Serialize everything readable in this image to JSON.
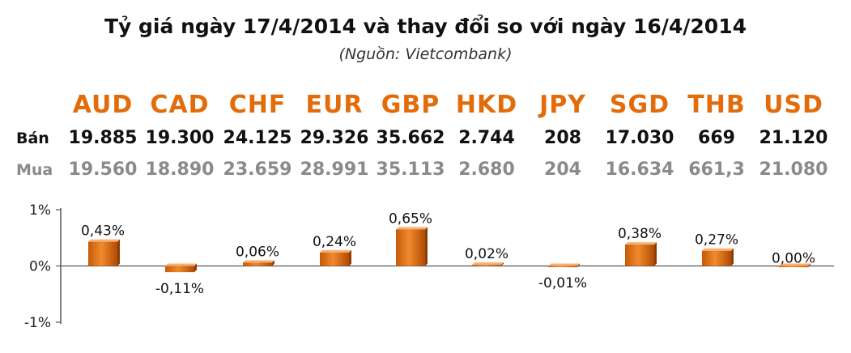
{
  "title": "Tỷ giá ngày 17/4/2014 và thay đổi so với ngày 16/4/2014",
  "subtitle": "(Nguồn: Vietcombank)",
  "rows": {
    "ban_label": "Bán",
    "mua_label": "Mua"
  },
  "colors": {
    "accent": "#e36c0a",
    "bar_light": "#f79646",
    "bar_dark": "#b8500a",
    "mua_text": "#8a8a8a"
  },
  "currencies": [
    {
      "code": "AUD",
      "ban": "19.885",
      "mua": "19.560",
      "change_label": "0,43%"
    },
    {
      "code": "CAD",
      "ban": "19.300",
      "mua": "18.890",
      "change_label": "-0,11%"
    },
    {
      "code": "CHF",
      "ban": "24.125",
      "mua": "23.659",
      "change_label": "0,06%"
    },
    {
      "code": "EUR",
      "ban": "29.326",
      "mua": "28.991",
      "change_label": "0,24%"
    },
    {
      "code": "GBP",
      "ban": "35.662",
      "mua": "35.113",
      "change_label": "0,65%"
    },
    {
      "code": "HKD",
      "ban": "2.744",
      "mua": "2.680",
      "change_label": "0,02%"
    },
    {
      "code": "JPY",
      "ban": "208",
      "mua": "204",
      "change_label": "-0,01%"
    },
    {
      "code": "SGD",
      "ban": "17.030",
      "mua": "16.634",
      "change_label": "0,38%"
    },
    {
      "code": "THB",
      "ban": "669",
      "mua": "661,3",
      "change_label": "0,27%"
    },
    {
      "code": "USD",
      "ban": "21.120",
      "mua": "21.080",
      "change_label": "0,00%"
    }
  ],
  "chart_data": {
    "type": "bar",
    "categories": [
      "AUD",
      "CAD",
      "CHF",
      "EUR",
      "GBP",
      "HKD",
      "JPY",
      "SGD",
      "THB",
      "USD"
    ],
    "values": [
      0.43,
      -0.11,
      0.06,
      0.24,
      0.65,
      0.02,
      -0.01,
      0.38,
      0.27,
      0.0
    ],
    "ylim": [
      -1,
      1
    ],
    "yticks": [
      1,
      0,
      -1
    ],
    "ytick_labels": [
      "1%",
      "0%",
      "-1%"
    ],
    "grid": false,
    "legend": "none"
  }
}
